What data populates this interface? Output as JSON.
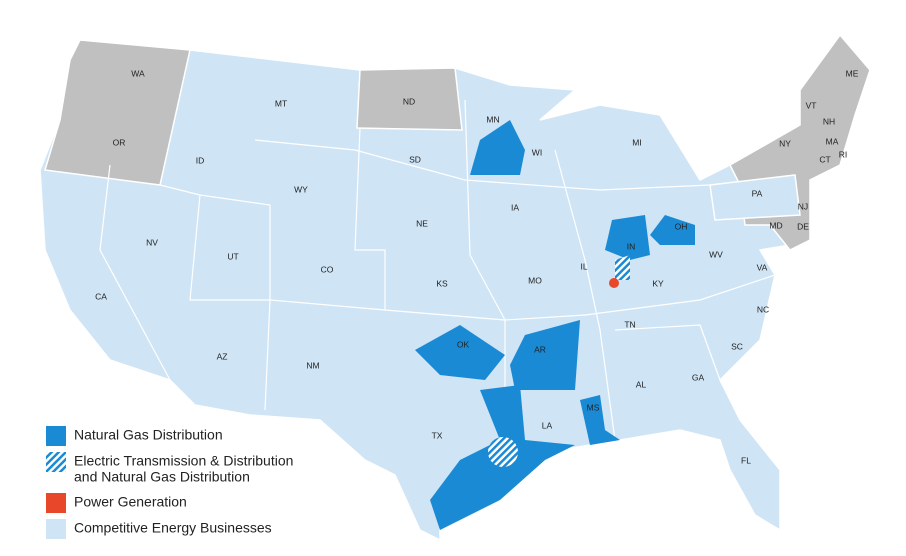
{
  "states": [
    "WA",
    "OR",
    "CA",
    "NV",
    "ID",
    "MT",
    "WY",
    "UT",
    "AZ",
    "CO",
    "NM",
    "ND",
    "SD",
    "NE",
    "KS",
    "OK",
    "TX",
    "MN",
    "IA",
    "MO",
    "AR",
    "LA",
    "WI",
    "IL",
    "MS",
    "MI",
    "IN",
    "OH",
    "KY",
    "TN",
    "AL",
    "GA",
    "FL",
    "SC",
    "NC",
    "VA",
    "WV",
    "PA",
    "NY",
    "VT",
    "NH",
    "ME",
    "MA",
    "RI",
    "CT",
    "NJ",
    "DE",
    "MD"
  ],
  "legend": [
    {
      "lines": [
        "Natural Gas Distribution"
      ]
    },
    {
      "lines": [
        "Electric Transmission & Distribution",
        "and Natural Gas Distribution"
      ]
    },
    {
      "lines": [
        "Power Generation"
      ]
    },
    {
      "lines": [
        "Competitive Energy Businesses"
      ]
    }
  ]
}
